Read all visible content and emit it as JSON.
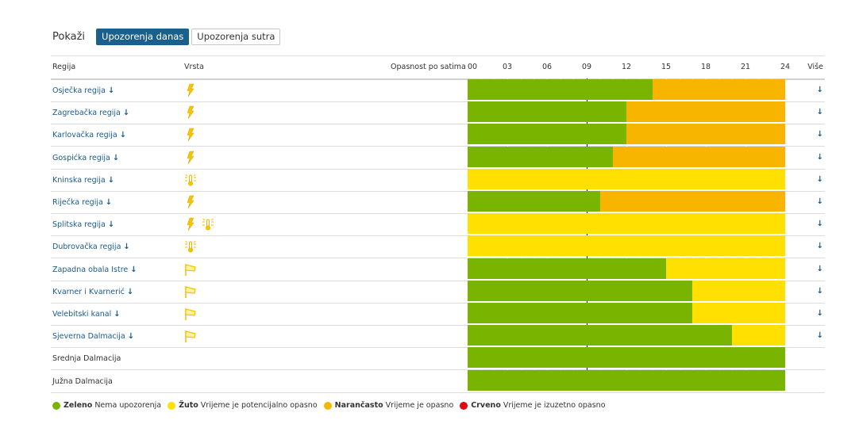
{
  "toolbar": {
    "label": "Pokaži",
    "buttons": [
      {
        "label": "Upozorenja danas",
        "active": true
      },
      {
        "label": "Upozorenja sutra",
        "active": false
      }
    ]
  },
  "header": {
    "region": "Regija",
    "type": "Vrsta",
    "hazard": "Opasnost po satima",
    "hours": [
      "00",
      "03",
      "06",
      "09",
      "12",
      "15",
      "18",
      "21",
      "24"
    ],
    "more": "Više"
  },
  "colors": {
    "green": "#78b400",
    "yellow": "#ffe000",
    "orange": "#f8b500",
    "red": "#e30613",
    "link": "#1a5a8c",
    "active_button": "#1b5f8c"
  },
  "current_hour": 9,
  "arrow": "↓",
  "rows": [
    {
      "name": "Osječka regija",
      "link": true,
      "icons": [
        "lightning-icon"
      ],
      "segments": [
        [
          "green",
          0,
          14
        ],
        [
          "orange",
          14,
          24
        ]
      ]
    },
    {
      "name": "Zagrebačka regija",
      "link": true,
      "icons": [
        "lightning-icon"
      ],
      "segments": [
        [
          "green",
          0,
          12
        ],
        [
          "orange",
          12,
          24
        ]
      ]
    },
    {
      "name": "Karlovačka regija",
      "link": true,
      "icons": [
        "lightning-icon"
      ],
      "segments": [
        [
          "green",
          0,
          12
        ],
        [
          "orange",
          12,
          24
        ]
      ]
    },
    {
      "name": "Gospićka regija",
      "link": true,
      "icons": [
        "lightning-icon"
      ],
      "segments": [
        [
          "green",
          0,
          11
        ],
        [
          "orange",
          11,
          24
        ]
      ]
    },
    {
      "name": "Kninska regija",
      "link": true,
      "icons": [
        "high-temperature-icon"
      ],
      "segments": [
        [
          "yellow",
          0,
          24
        ]
      ]
    },
    {
      "name": "Riječka regija",
      "link": true,
      "icons": [
        "lightning-icon"
      ],
      "segments": [
        [
          "green",
          0,
          10
        ],
        [
          "orange",
          10,
          24
        ]
      ]
    },
    {
      "name": "Splitska regija",
      "link": true,
      "icons": [
        "lightning-icon",
        "high-temperature-icon"
      ],
      "segments": [
        [
          "yellow",
          0,
          24
        ]
      ]
    },
    {
      "name": "Dubrovačka regija",
      "link": true,
      "icons": [
        "high-temperature-icon"
      ],
      "segments": [
        [
          "yellow",
          0,
          24
        ]
      ]
    },
    {
      "name": "Zapadna obala Istre",
      "link": true,
      "icons": [
        "wind-icon"
      ],
      "segments": [
        [
          "green",
          0,
          15
        ],
        [
          "yellow",
          15,
          24
        ]
      ]
    },
    {
      "name": "Kvarner i Kvarnerić",
      "link": true,
      "icons": [
        "wind-icon"
      ],
      "segments": [
        [
          "green",
          0,
          17
        ],
        [
          "yellow",
          17,
          24
        ]
      ]
    },
    {
      "name": "Velebitski kanal",
      "link": true,
      "icons": [
        "wind-icon"
      ],
      "segments": [
        [
          "green",
          0,
          17
        ],
        [
          "yellow",
          17,
          24
        ]
      ]
    },
    {
      "name": "Sjeverna Dalmacija",
      "link": true,
      "icons": [
        "wind-icon"
      ],
      "segments": [
        [
          "green",
          0,
          20
        ],
        [
          "yellow",
          20,
          24
        ]
      ]
    },
    {
      "name": "Srednja Dalmacija",
      "link": false,
      "icons": [],
      "segments": [
        [
          "green",
          0,
          24
        ]
      ]
    },
    {
      "name": "Južna Dalmacija",
      "link": false,
      "icons": [],
      "segments": [
        [
          "green",
          0,
          24
        ]
      ]
    }
  ],
  "legend": [
    {
      "color": "green",
      "name": "Zeleno",
      "desc": "Nema upozorenja"
    },
    {
      "color": "yellow",
      "name": "Žuto",
      "desc": "Vrijeme je potencijalno opasno"
    },
    {
      "color": "orange",
      "name": "Narančasto",
      "desc": "Vrijeme je opasno"
    },
    {
      "color": "red",
      "name": "Crveno",
      "desc": "Vrijeme je izuzetno opasno"
    }
  ]
}
